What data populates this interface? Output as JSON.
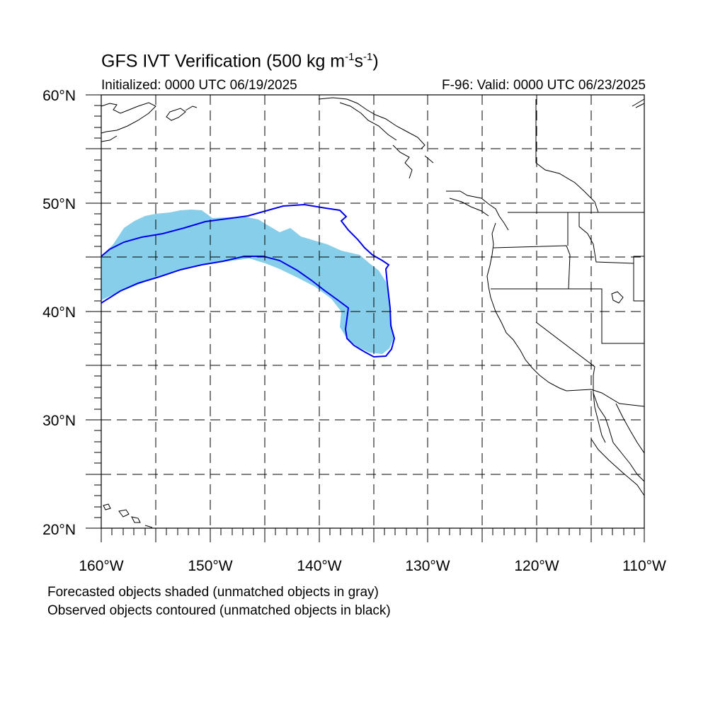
{
  "header": {
    "title_prefix": "GFS IVT Verification (500 kg m",
    "title_sup1": "-1",
    "title_mid": "s",
    "title_sup2": "-1",
    "title_suffix": ")",
    "initialized": "Initialized: 0000 UTC 06/19/2025",
    "valid": "F-96: Valid: 0000 UTC 06/23/2025"
  },
  "axes": {
    "lon_labels": [
      "160°W",
      "150°W",
      "140°W",
      "130°W",
      "120°W",
      "110°W"
    ],
    "lat_labels": [
      "60°N",
      "50°N",
      "40°N",
      "30°N",
      "20°N"
    ],
    "lon_range": [
      -160,
      -110
    ],
    "lat_range": [
      20,
      60
    ]
  },
  "notes": {
    "forecast": "Forecasted objects shaded (unmatched objects in gray)",
    "observed": "Observed objects contoured (unmatched objects in black)"
  },
  "colors": {
    "forecast_fill": "#87ceeb",
    "observed_contour": "#0000ee",
    "coastline": "#000000",
    "grid": "#000000"
  }
}
